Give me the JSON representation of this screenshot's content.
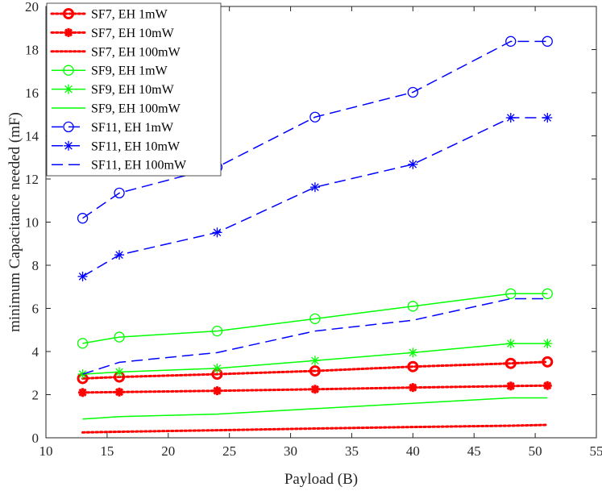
{
  "chart_data": {
    "type": "line",
    "title": "",
    "xlabel": "Payload (B)",
    "ylabel": "minimum Capacitance needed (mF)",
    "xlim": [
      10,
      55
    ],
    "ylim": [
      0,
      20
    ],
    "xticks": [
      10,
      15,
      20,
      25,
      30,
      35,
      40,
      45,
      50,
      55
    ],
    "yticks": [
      0,
      2,
      4,
      6,
      8,
      10,
      12,
      14,
      16,
      18,
      20
    ],
    "x": [
      13,
      16,
      24,
      32,
      40,
      48,
      51
    ],
    "legend_position": "top-left",
    "colors": {
      "sf7": "#ff0000",
      "sf9": "#00ff00",
      "sf11": "#0000ff"
    },
    "series": [
      {
        "name": "SF7, EH 1mW",
        "color": "#ff0000",
        "line": "dotted",
        "marker": "circle-bold",
        "values": [
          2.75,
          2.82,
          2.95,
          3.1,
          3.3,
          3.45,
          3.52
        ]
      },
      {
        "name": "SF7, EH 10mW",
        "color": "#ff0000",
        "line": "dotted",
        "marker": "star-bold",
        "values": [
          2.1,
          2.12,
          2.18,
          2.25,
          2.33,
          2.4,
          2.42
        ]
      },
      {
        "name": "SF7, EH 100mW",
        "color": "#ff0000",
        "line": "dotted",
        "marker": "none",
        "values": [
          0.25,
          0.28,
          0.35,
          0.43,
          0.5,
          0.56,
          0.6
        ]
      },
      {
        "name": "SF9, EH 1mW",
        "color": "#00ff00",
        "line": "solid",
        "marker": "circle",
        "values": [
          4.38,
          4.67,
          4.95,
          5.52,
          6.1,
          6.68,
          6.68
        ]
      },
      {
        "name": "SF9, EH 10mW",
        "color": "#00ff00",
        "line": "solid",
        "marker": "star",
        "values": [
          2.95,
          3.05,
          3.22,
          3.58,
          3.95,
          4.37,
          4.37
        ]
      },
      {
        "name": "SF9, EH 100mW",
        "color": "#00ff00",
        "line": "solid",
        "marker": "none",
        "values": [
          0.87,
          0.98,
          1.1,
          1.35,
          1.6,
          1.85,
          1.85
        ]
      },
      {
        "name": "SF11, EH 1mW",
        "color": "#0000ff",
        "line": "dashed",
        "marker": "circle",
        "values": [
          10.18,
          11.35,
          12.55,
          14.87,
          16.02,
          18.38,
          18.38
        ]
      },
      {
        "name": "SF11, EH 10mW",
        "color": "#0000ff",
        "line": "dashed",
        "marker": "star",
        "values": [
          7.48,
          8.48,
          9.52,
          11.62,
          12.68,
          14.84,
          14.84
        ]
      },
      {
        "name": "SF11, EH 100mW",
        "color": "#0000ff",
        "line": "dashed",
        "marker": "none",
        "values": [
          2.95,
          3.5,
          3.95,
          4.95,
          5.45,
          6.45,
          6.45
        ]
      }
    ]
  }
}
